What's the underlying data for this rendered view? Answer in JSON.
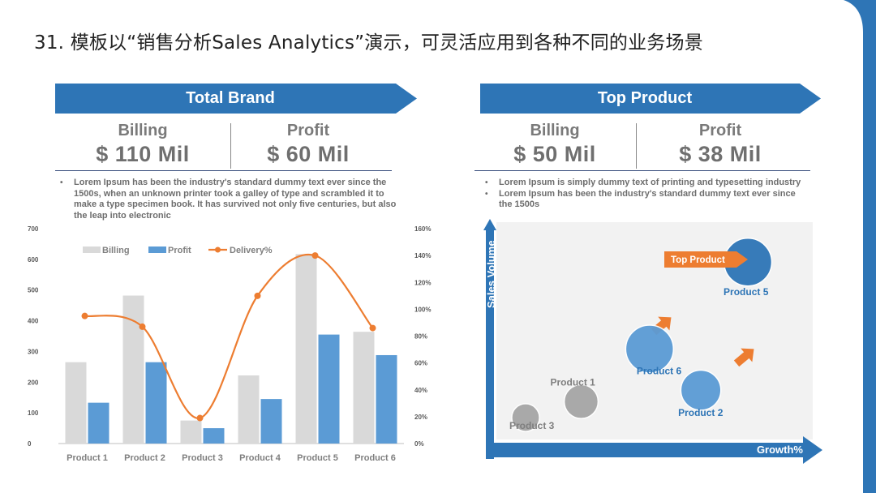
{
  "slide": {
    "title": "31. 模板以“销售分析Sales Analytics”演示，可灵活应用到各种不同的业务场景"
  },
  "colors": {
    "accent": "#2e75b6",
    "orange": "#ed7d31",
    "gray_bar": "#d9d9d9",
    "blue_bar": "#5b9bd5",
    "dark_blue": "#2e75b6"
  },
  "left_panel": {
    "banner": "Total Brand",
    "billing_label": "Billing",
    "billing_value": "$ 110 Mil",
    "profit_label": "Profit",
    "profit_value": "$ 60 Mil",
    "bullets": [
      "Lorem Ipsum has been the industry's standard dummy text ever since the 1500s, when an unknown printer took a galley of type and scrambled it to make a type specimen book. It has survived not only five centuries, but also the leap into electronic"
    ]
  },
  "right_panel": {
    "banner": "Top Product",
    "billing_label": "Billing",
    "billing_value": "$ 50 Mil",
    "profit_label": "Profit",
    "profit_value": "$ 38 Mil",
    "bullets": [
      "Lorem Ipsum is simply dummy text of printing and typesetting industry",
      "Lorem Ipsum has been the industry's standard dummy text ever since the 1500s"
    ]
  },
  "chart_data": [
    {
      "type": "bar",
      "categories": [
        "Product 1",
        "Product 2",
        "Product 3",
        "Product 4",
        "Product 5",
        "Product 6"
      ],
      "series": [
        {
          "name": "Billing",
          "values": [
            265,
            482,
            75,
            222,
            617,
            364
          ],
          "axis": "left",
          "color": "#d9d9d9"
        },
        {
          "name": "Profit",
          "values": [
            133,
            265,
            50,
            145,
            355,
            288
          ],
          "axis": "left",
          "color": "#5b9bd5"
        },
        {
          "name": "Delivery%",
          "values": [
            95,
            87,
            19,
            110,
            140,
            86
          ],
          "axis": "right",
          "type": "line",
          "color": "#ed7d31"
        }
      ],
      "ylim": [
        0,
        700
      ],
      "yticks": [
        0,
        100,
        200,
        300,
        400,
        500,
        600,
        700
      ],
      "y2lim": [
        0,
        160
      ],
      "y2ticks": [
        "0%",
        "20%",
        "40%",
        "60%",
        "80%",
        "100%",
        "120%",
        "140%",
        "160%"
      ],
      "legend": "top-left",
      "grid": false
    },
    {
      "type": "scatter",
      "xlabel": "Growth%",
      "ylabel": "Sales Volume",
      "callout": "Top Product",
      "points": [
        {
          "label": "Product 1",
          "growth": 2.3,
          "volume": 1.7,
          "size": 1.1,
          "color": "#a6a6a6"
        },
        {
          "label": "Product 2",
          "growth": 5.1,
          "volume": 2.2,
          "size": 1.3,
          "color": "#5b9bd5"
        },
        {
          "label": "Product 3",
          "growth": 1.0,
          "volume": 1.0,
          "size": 0.9,
          "color": "#a6a6a6"
        },
        {
          "label": "Product 5",
          "growth": 6.2,
          "volume": 7.8,
          "size": 1.55,
          "color": "#2e75b6"
        },
        {
          "label": "Product 6",
          "growth": 3.9,
          "volume": 4.0,
          "size": 1.55,
          "color": "#5b9bd5"
        }
      ]
    }
  ]
}
